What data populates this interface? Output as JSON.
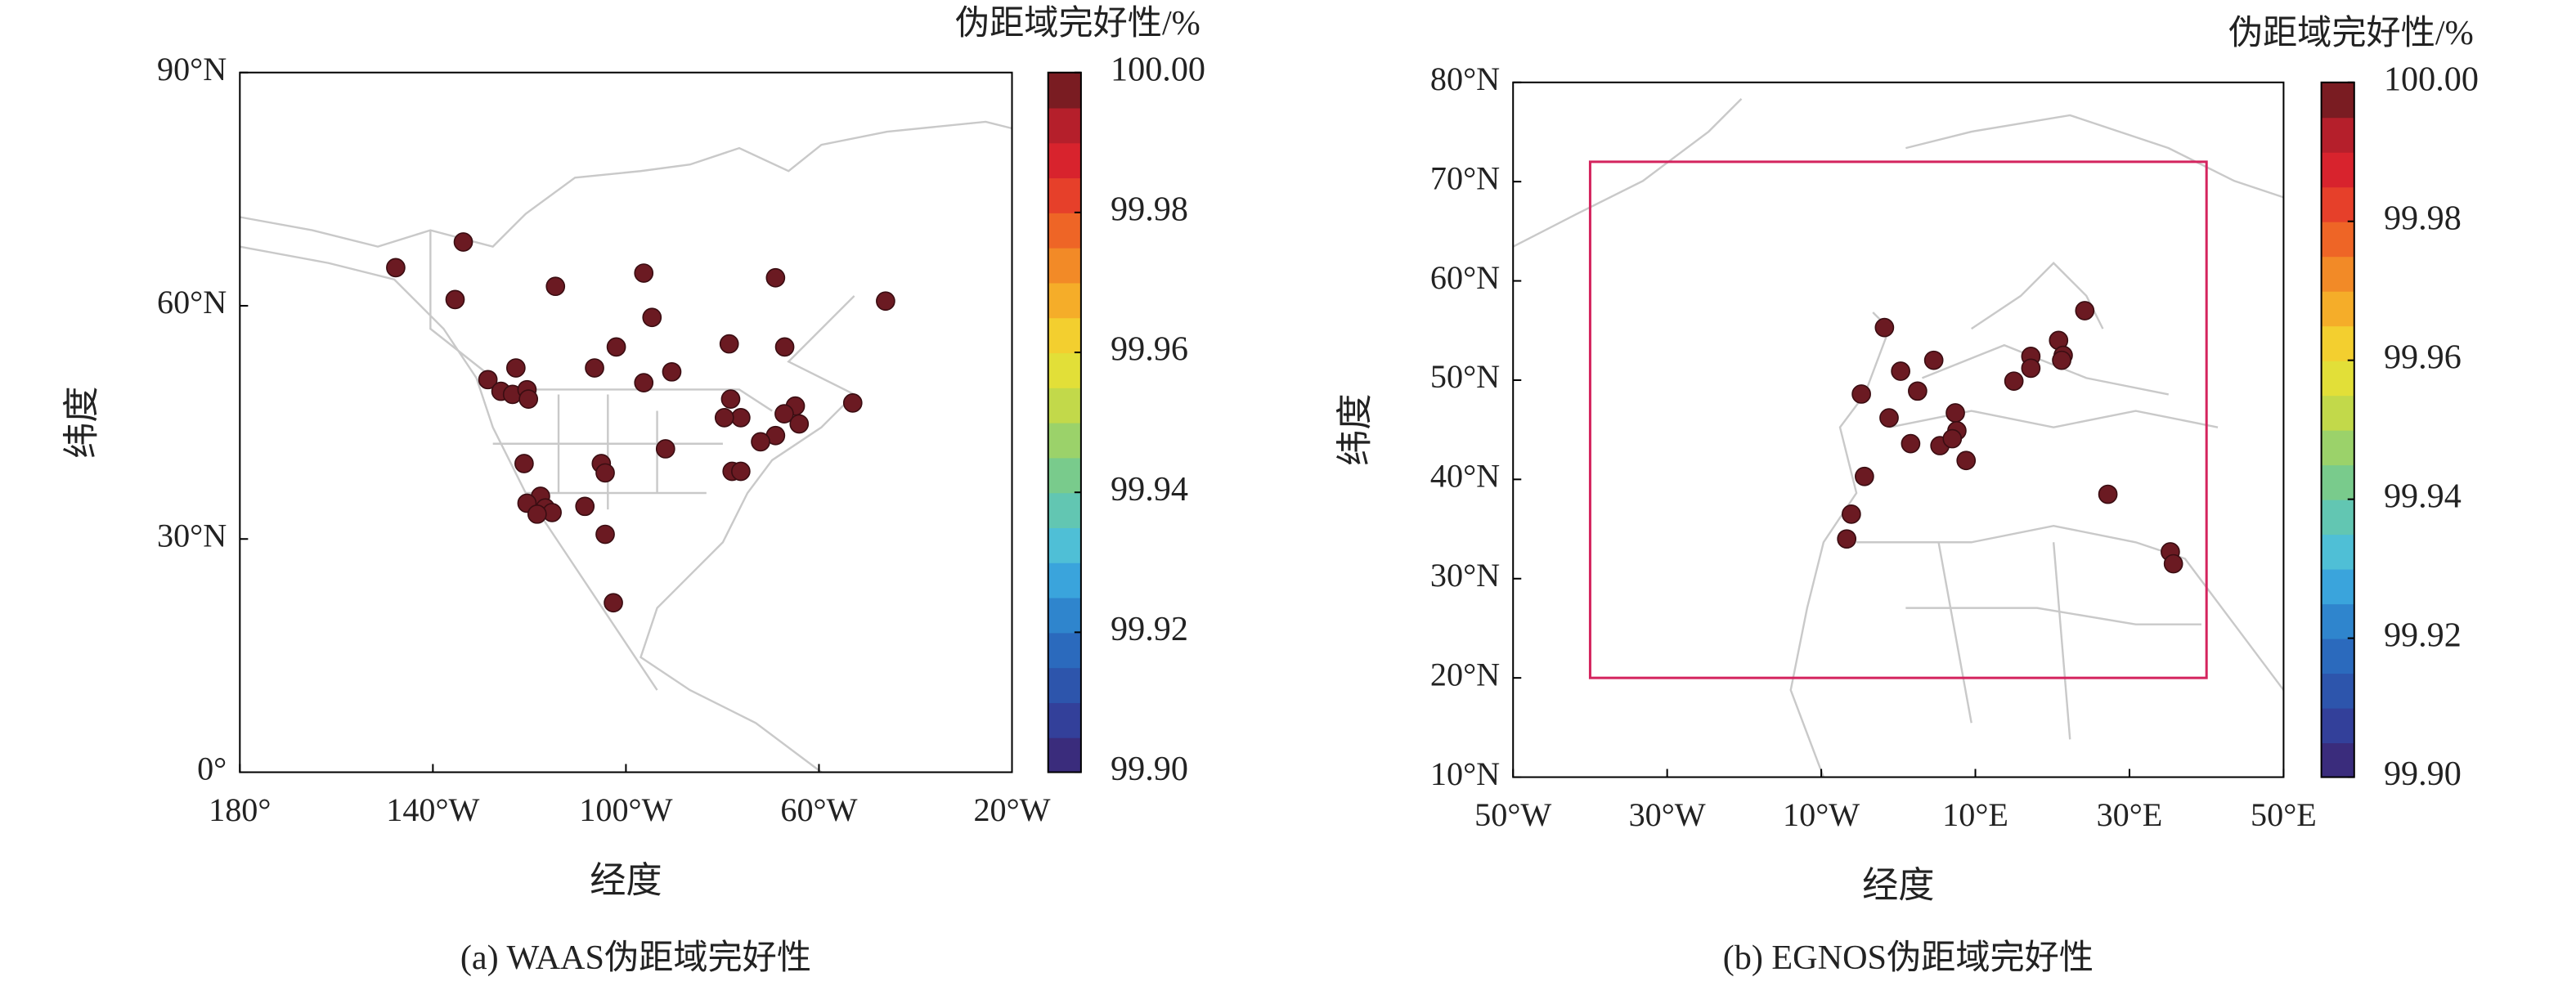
{
  "chart_data": [
    {
      "type": "scatter",
      "caption": "(a) WAAS伪距域完好性",
      "xlabel": "经度",
      "ylabel": "纬度",
      "color": "#6b1a22",
      "x": [
        -147.7,
        -133.7,
        -135.4,
        -114.6,
        -96.3,
        -69.0,
        -46.2,
        -94.6,
        -102.0,
        -106.5,
        -90.5,
        -96.3,
        -122.8,
        -128.6,
        -125.9,
        -123.5,
        -120.5,
        -120.2,
        -78.6,
        -67.1,
        -78.3,
        -53.0,
        -64.9,
        -67.2,
        -64.1,
        -69.0,
        -72.1,
        -76.2,
        -79.6,
        -91.8,
        -105.1,
        -104.3,
        -121.1,
        -78.0,
        -76.2,
        -117.7,
        -120.5,
        -116.7,
        -115.3,
        -118.4,
        -108.5,
        -104.3,
        -102.6
      ],
      "values": [
        64.9,
        68.2,
        60.8,
        62.5,
        64.2,
        63.6,
        60.6,
        58.5,
        54.7,
        52.0,
        51.5,
        50.1,
        52.0,
        50.5,
        49.0,
        48.6,
        49.2,
        48.0,
        55.1,
        54.7,
        48.0,
        47.5,
        47.1,
        46.1,
        44.8,
        43.3,
        42.5,
        45.6,
        45.6,
        41.6,
        39.7,
        38.5,
        39.7,
        38.7,
        38.7,
        35.5,
        34.6,
        34.0,
        33.4,
        33.2,
        34.2,
        30.6,
        21.8
      ],
      "xlim": [
        -180,
        -20
      ],
      "xticks": [
        {
          "value": -180,
          "label": "180°"
        },
        {
          "value": -140,
          "label": "140°W"
        },
        {
          "value": -100,
          "label": "100°W"
        },
        {
          "value": -60,
          "label": "60°W"
        },
        {
          "value": -20,
          "label": "20°W"
        }
      ],
      "ylim": [
        0,
        90
      ],
      "yticks": [
        {
          "value": 0,
          "label": "0°"
        },
        {
          "value": 30,
          "label": "30°N"
        },
        {
          "value": 60,
          "label": "60°N"
        },
        {
          "value": 90,
          "label": "90°N"
        }
      ],
      "colorbar": {
        "label": "伪距域完好性/%",
        "lim": [
          99.9,
          100
        ],
        "ticks": [
          {
            "value": 100,
            "label": "100.00"
          },
          99.98,
          99.96,
          99.94,
          99.92,
          {
            "value": 99.9,
            "label": "99.90"
          }
        ],
        "colormap": [
          "#3a2c7c",
          "#33409a",
          "#2d55ac",
          "#2b6abd",
          "#2f85cd",
          "#3aa4dc",
          "#4fbfd6",
          "#62c6b2",
          "#79cb8c",
          "#9bd26a",
          "#c2d94a",
          "#e2df38",
          "#f3cf2f",
          "#f5ad29",
          "#f28a27",
          "#ee6526",
          "#e6402a",
          "#d8232d",
          "#b51f2b",
          "#7a1c22"
        ]
      }
    },
    {
      "type": "scatter",
      "caption": "(b) EGNOS伪距域完好性",
      "xlabel": "经度",
      "ylabel": "纬度",
      "color": "#6b1a22",
      "x": [
        -1.8,
        -4.8,
        0.3,
        4.6,
        2.5,
        -1.2,
        1.6,
        5.4,
        7.4,
        7.6,
        7.0,
        8.8,
        -4.4,
        -6.1,
        -6.7,
        17.2,
        17.2,
        15.0,
        20.8,
        21.4,
        21.2,
        24.2,
        27.2,
        35.3,
        35.7
      ],
      "values": [
        55.3,
        48.6,
        50.9,
        52.0,
        48.9,
        46.2,
        43.6,
        43.4,
        46.7,
        44.9,
        44.1,
        41.9,
        40.3,
        36.5,
        34.0,
        52.4,
        51.2,
        49.9,
        54.0,
        52.5,
        52.0,
        57.0,
        38.5,
        32.7,
        31.5
      ],
      "xlim": [
        -50,
        50
      ],
      "xticks": [
        {
          "value": -50,
          "label": "50°W"
        },
        {
          "value": -30,
          "label": "30°W"
        },
        {
          "value": -10,
          "label": "10°W"
        },
        {
          "value": 10,
          "label": "10°E"
        },
        {
          "value": 30,
          "label": "30°E"
        },
        {
          "value": 50,
          "label": "50°E"
        }
      ],
      "ylim": [
        10,
        80
      ],
      "yticks": [
        {
          "value": 10,
          "label": "10°N"
        },
        {
          "value": 20,
          "label": "20°N"
        },
        {
          "value": 30,
          "label": "30°N"
        },
        {
          "value": 40,
          "label": "40°N"
        },
        {
          "value": 50,
          "label": "50°N"
        },
        {
          "value": 60,
          "label": "60°N"
        },
        {
          "value": 70,
          "label": "70°N"
        },
        {
          "value": 80,
          "label": "80°N"
        }
      ],
      "region": {
        "color": "#d4245e",
        "lon": [
          -40,
          40
        ],
        "lat": [
          20,
          72
        ]
      },
      "colorbar": {
        "label": "伪距域完好性/%",
        "lim": [
          99.9,
          100
        ],
        "ticks": [
          {
            "value": 100,
            "label": "100.00"
          },
          99.98,
          99.96,
          99.94,
          99.92,
          {
            "value": 99.9,
            "label": "99.90"
          }
        ],
        "colormap": [
          "#3a2c7c",
          "#33409a",
          "#2d55ac",
          "#2b6abd",
          "#2f85cd",
          "#3aa4dc",
          "#4fbfd6",
          "#62c6b2",
          "#79cb8c",
          "#9bd26a",
          "#c2d94a",
          "#e2df38",
          "#f3cf2f",
          "#f5ad29",
          "#f28a27",
          "#ee6526",
          "#e6402a",
          "#d8232d",
          "#b51f2b",
          "#7a1c22"
        ]
      }
    }
  ]
}
